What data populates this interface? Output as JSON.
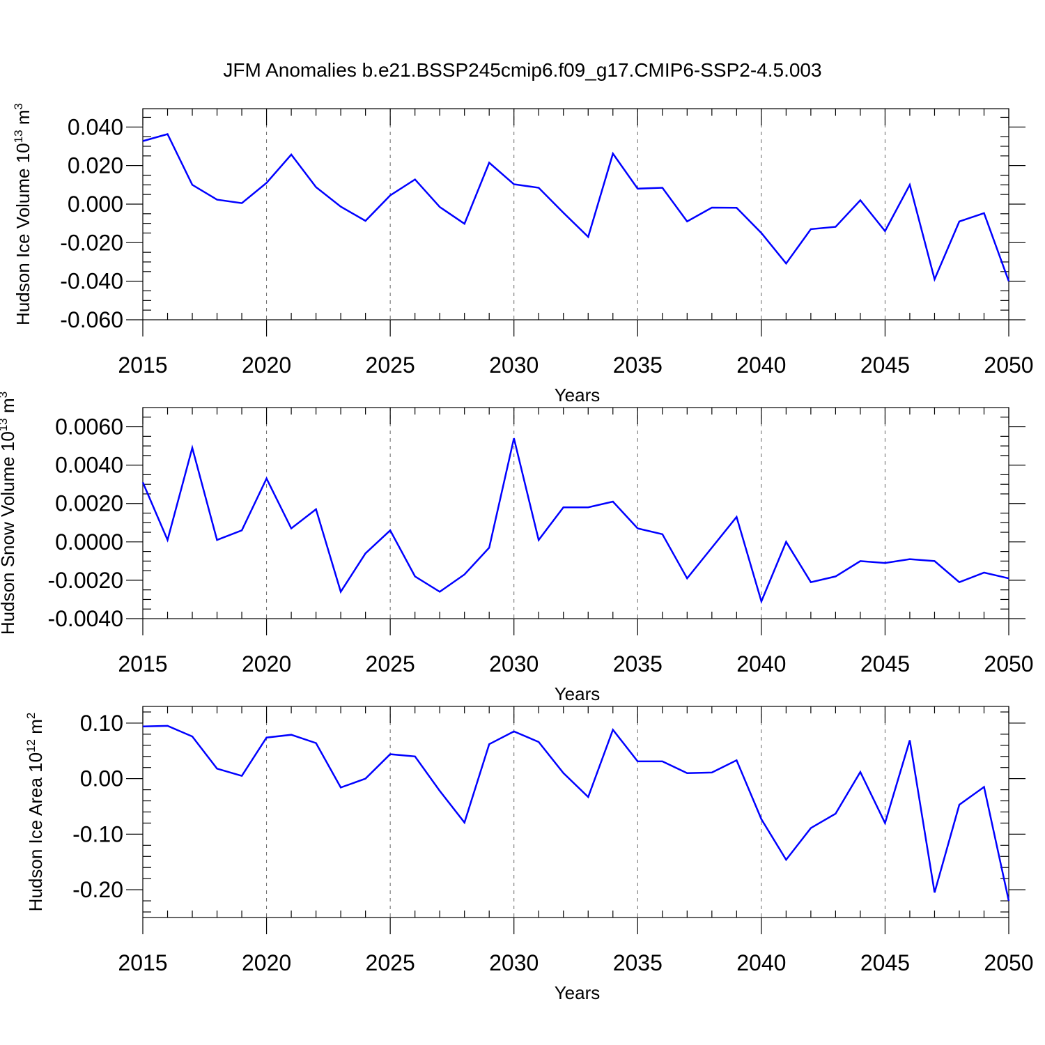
{
  "title": "JFM Anomalies b.e21.BSSP245cmip6.f09_g17.CMIP6-SSP2-4.5.003",
  "colors": {
    "series": "#0000ff",
    "axis": "#000000",
    "grid": "#666666"
  },
  "chart_data": [
    {
      "type": "line",
      "name": "hudson-ice-volume",
      "ylabel": {
        "text": "Hudson Ice Volume 10",
        "exp": "13",
        "unit": " m",
        "unit_exp": "3"
      },
      "xlabel": "Years",
      "xlim": [
        2015,
        2050
      ],
      "ylim": [
        -0.06,
        0.0495
      ],
      "xticks": [
        2015,
        2020,
        2025,
        2030,
        2035,
        2040,
        2045,
        2050
      ],
      "yticks": [
        0.04,
        0.02,
        0.0,
        -0.02,
        -0.04,
        -0.06
      ],
      "ytick_labels": [
        "0.040",
        "0.020",
        "0.000",
        "-0.020",
        "-0.040",
        "-0.060"
      ],
      "minor_yticks": [
        0.045,
        0.035,
        0.03,
        0.025,
        0.015,
        0.01,
        0.005,
        -0.005,
        -0.01,
        -0.015,
        -0.025,
        -0.03,
        -0.035,
        -0.045,
        -0.05,
        -0.055
      ],
      "grid_x": [
        2020,
        2025,
        2030,
        2035,
        2040,
        2045
      ],
      "x": [
        2015,
        2016,
        2017,
        2018,
        2019,
        2020,
        2021,
        2022,
        2023,
        2024,
        2025,
        2026,
        2027,
        2028,
        2029,
        2030,
        2031,
        2032,
        2033,
        2034,
        2035,
        2036,
        2037,
        2038,
        2039,
        2040,
        2041,
        2042,
        2043,
        2044,
        2045,
        2046,
        2047,
        2048,
        2049,
        2050
      ],
      "values": [
        0.0327,
        0.0363,
        0.01,
        0.0023,
        0.0005,
        0.011,
        0.0257,
        0.0088,
        -0.0013,
        -0.0087,
        0.0045,
        0.0128,
        -0.0015,
        -0.0102,
        0.0215,
        0.0103,
        0.0085,
        -0.0045,
        -0.017,
        0.0262,
        0.008,
        0.0085,
        -0.009,
        -0.0018,
        -0.0019,
        -0.015,
        -0.0308,
        -0.013,
        -0.0118,
        0.002,
        -0.014,
        0.01,
        -0.039,
        -0.009,
        -0.0047,
        -0.04
      ]
    },
    {
      "type": "line",
      "name": "hudson-snow-volume",
      "ylabel": {
        "text": "Hudson Snow Volume 10",
        "exp": "13",
        "unit": " m",
        "unit_exp": "3"
      },
      "xlabel": "Years",
      "xlim": [
        2015,
        2050
      ],
      "ylim": [
        -0.004,
        0.007
      ],
      "xticks": [
        2015,
        2020,
        2025,
        2030,
        2035,
        2040,
        2045,
        2050
      ],
      "yticks": [
        0.006,
        0.004,
        0.002,
        0.0,
        -0.002,
        -0.004
      ],
      "ytick_labels": [
        "0.0060",
        "0.0040",
        "0.0020",
        "0.0000",
        "-0.0020",
        "-0.0040"
      ],
      "minor_yticks": [
        0.0065,
        0.0055,
        0.005,
        0.0045,
        0.0035,
        0.003,
        0.0025,
        0.0015,
        0.001,
        0.0005,
        -0.0005,
        -0.001,
        -0.0015,
        -0.0025,
        -0.003,
        -0.0035
      ],
      "grid_x": [
        2020,
        2025,
        2030,
        2035,
        2040,
        2045
      ],
      "x": [
        2015,
        2016,
        2017,
        2018,
        2019,
        2020,
        2021,
        2022,
        2023,
        2024,
        2025,
        2026,
        2027,
        2028,
        2029,
        2030,
        2031,
        2032,
        2033,
        2034,
        2035,
        2036,
        2037,
        2038,
        2039,
        2040,
        2041,
        2042,
        2043,
        2044,
        2045,
        2046,
        2047,
        2048,
        2049,
        2050
      ],
      "values": [
        0.0031,
        0.0001,
        0.0049,
        0.0001,
        0.0006,
        0.0033,
        0.0007,
        0.0017,
        -0.0026,
        -0.0006,
        0.0006,
        -0.0018,
        -0.0026,
        -0.0017,
        -0.0003,
        0.0054,
        0.0001,
        0.0018,
        0.0018,
        0.0021,
        0.0007,
        0.0004,
        -0.0019,
        -0.0003,
        0.0013,
        -0.0031,
        0.0,
        -0.0021,
        -0.0018,
        -0.001,
        -0.0011,
        -0.0009,
        -0.001,
        -0.0021,
        -0.0016,
        -0.0019
      ]
    },
    {
      "type": "line",
      "name": "hudson-ice-area",
      "ylabel": {
        "text": "Hudson Ice Area 10",
        "exp": "12",
        "unit": " m",
        "unit_exp": "2"
      },
      "xlabel": "Years",
      "xlim": [
        2015,
        2050
      ],
      "ylim": [
        -0.25,
        0.13
      ],
      "xticks": [
        2015,
        2020,
        2025,
        2030,
        2035,
        2040,
        2045,
        2050
      ],
      "yticks": [
        0.1,
        0.0,
        -0.1,
        -0.2
      ],
      "ytick_labels": [
        "0.10",
        "0.00",
        "-0.10",
        "-0.20"
      ],
      "minor_yticks": [
        0.12,
        0.08,
        0.06,
        0.04,
        0.02,
        -0.02,
        -0.04,
        -0.06,
        -0.08,
        -0.12,
        -0.14,
        -0.16,
        -0.18,
        -0.22,
        -0.24
      ],
      "grid_x": [
        2020,
        2025,
        2030,
        2035,
        2040,
        2045
      ],
      "x": [
        2015,
        2016,
        2017,
        2018,
        2019,
        2020,
        2021,
        2022,
        2023,
        2024,
        2025,
        2026,
        2027,
        2028,
        2029,
        2030,
        2031,
        2032,
        2033,
        2034,
        2035,
        2036,
        2037,
        2038,
        2039,
        2040,
        2041,
        2042,
        2043,
        2044,
        2045,
        2046,
        2047,
        2048,
        2049,
        2050
      ],
      "values": [
        0.094,
        0.095,
        0.076,
        0.018,
        0.005,
        0.074,
        0.079,
        0.064,
        -0.016,
        0.0,
        0.044,
        0.04,
        -0.022,
        -0.079,
        0.062,
        0.085,
        0.066,
        0.01,
        -0.033,
        0.088,
        0.031,
        0.031,
        0.01,
        0.011,
        0.033,
        -0.073,
        -0.146,
        -0.089,
        -0.063,
        0.012,
        -0.08,
        0.069,
        -0.205,
        -0.047,
        -0.015,
        -0.22
      ]
    }
  ]
}
